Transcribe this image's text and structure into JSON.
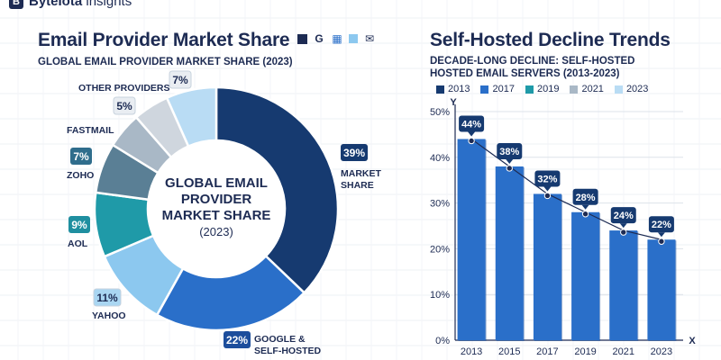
{
  "brand": {
    "name_bold": "ByteIota",
    "name_light": " insights",
    "logo_glyph": "B"
  },
  "left": {
    "title": "Email Provider Market Share",
    "subtitle": "GLOBAL EMAIL PROVIDER MARKET SHARE (2023)",
    "title_icons": [
      "G",
      "▦",
      "▢",
      "✉"
    ]
  },
  "right": {
    "title": "Self-Hosted Decline Trends",
    "subtitle_line1": "DECADE-LONG DECLINE: SELF-HOSTED",
    "subtitle_line2": "HOSTED EMAIL SERVERS (2013-2023)"
  },
  "chart_data": [
    {
      "type": "pie",
      "title": "GLOBAL EMAIL PROVIDER MARKET SHARE (2023)",
      "center_label": [
        "GLOBAL EMAIL",
        "PROVIDER",
        "MARKET SHARE",
        "(2023)"
      ],
      "slices": [
        {
          "label": "MARKET SHARE",
          "value": 39,
          "display": "39%",
          "color": "#163a70"
        },
        {
          "label": "GOOGLE & SELF-HOSTED",
          "value": 22,
          "display": "22%",
          "color": "#2a6fc9"
        },
        {
          "label": "YAHOO",
          "value": 11,
          "display": "11%",
          "color": "#8cc8ef"
        },
        {
          "label": "AOL",
          "value": 9,
          "display": "9%",
          "color": "#1f9aa8"
        },
        {
          "label": "ZOHO",
          "value": 7,
          "display": "7%",
          "color": "#5a7f95"
        },
        {
          "label": "FASTMAIL",
          "value": 5,
          "display": "5%",
          "color": "#a9b8c6"
        },
        {
          "label": "",
          "value": 5,
          "display": "",
          "color": "#cfd6de"
        },
        {
          "label": "OTHER PROVIDERS",
          "value": 7,
          "display": "7%",
          "color": "#b9dcf4"
        }
      ]
    },
    {
      "type": "bar",
      "title": "DECADE-LONG DECLINE: SELF-HOSTED HOSTED EMAIL SERVERS (2013-2023)",
      "categories": [
        "2013",
        "2015",
        "2017",
        "2019",
        "2021",
        "2023"
      ],
      "values": [
        44,
        38,
        32,
        28,
        24,
        22
      ],
      "value_labels": [
        "44%",
        "38%",
        "32%",
        "28%",
        "24%",
        "22%"
      ],
      "ylim": [
        0,
        50
      ],
      "yticks": [
        "0%",
        "10%",
        "20%",
        "30%",
        "40%",
        "50%"
      ],
      "xlabel": "X",
      "ylabel": "Y",
      "bar_color": "#2a6fc9",
      "legend": [
        {
          "label": "2013",
          "color": "#163a70"
        },
        {
          "label": "2017",
          "color": "#2a6fc9"
        },
        {
          "label": "2019",
          "color": "#1f9aa8"
        },
        {
          "label": "2021",
          "color": "#a9b8c6"
        },
        {
          "label": "2023",
          "color": "#b9dcf4"
        }
      ]
    }
  ]
}
